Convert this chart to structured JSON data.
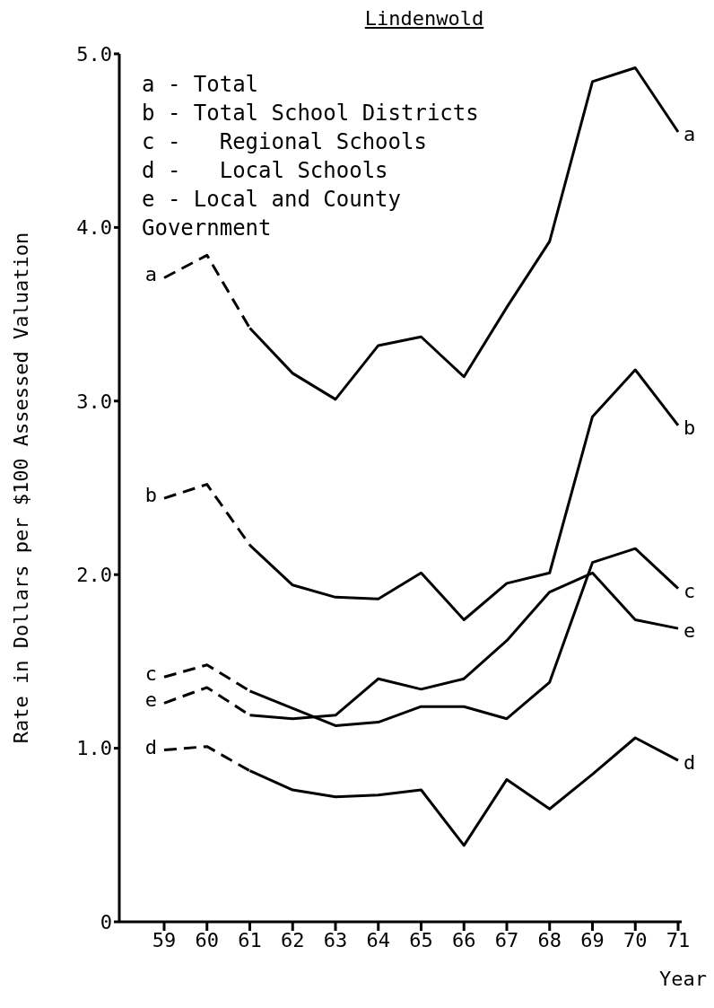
{
  "chart_data": {
    "type": "line",
    "title": "Lindenwold",
    "xlabel": "Year",
    "ylabel": "Rate in Dollars per $100  Assessed Valuation",
    "categories": [
      "59",
      "60",
      "61",
      "62",
      "63",
      "64",
      "65",
      "66",
      "67",
      "68",
      "69",
      "70",
      "71"
    ],
    "ylim": [
      0,
      5
    ],
    "yticks": [
      {
        "value": 0,
        "label": "0"
      },
      {
        "value": 1,
        "label": "1.0"
      },
      {
        "value": 2,
        "label": "2.0"
      },
      {
        "value": 3,
        "label": "3.0"
      },
      {
        "value": 4,
        "label": "4.0"
      },
      {
        "value": 5,
        "label": "5.0"
      }
    ],
    "marker": "none",
    "annotations": [
      "a - Total",
      "b - Total School Districts",
      "c -   Regional Schools",
      "d -   Local Schools",
      "e - Local and County Government"
    ],
    "series": [
      {
        "name": "a",
        "color": "#000000",
        "line_style": "dashed",
        "values": [
          3.71,
          3.84,
          3.42,
          null,
          null,
          null,
          null,
          null,
          null,
          null,
          null,
          null,
          null
        ]
      },
      {
        "name": "a",
        "color": "#000000",
        "line_style": "solid",
        "values": [
          null,
          null,
          3.42,
          3.16,
          3.01,
          3.32,
          3.37,
          3.14,
          3.54,
          3.92,
          4.84,
          4.92,
          4.55
        ]
      },
      {
        "name": "b",
        "color": "#000000",
        "line_style": "dashed",
        "values": [
          2.44,
          2.52,
          2.17,
          null,
          null,
          null,
          null,
          null,
          null,
          null,
          null,
          null,
          null
        ]
      },
      {
        "name": "b",
        "color": "#000000",
        "line_style": "solid",
        "values": [
          null,
          null,
          2.17,
          1.94,
          1.87,
          1.86,
          2.01,
          1.74,
          1.95,
          2.01,
          2.91,
          3.18,
          2.86
        ]
      },
      {
        "name": "c",
        "color": "#000000",
        "line_style": "dashed",
        "values": [
          1.41,
          1.48,
          1.33,
          null,
          null,
          null,
          null,
          null,
          null,
          null,
          null,
          null,
          null
        ]
      },
      {
        "name": "c",
        "color": "#000000",
        "line_style": "solid",
        "values": [
          null,
          null,
          1.33,
          1.23,
          1.13,
          1.15,
          1.24,
          1.24,
          1.17,
          1.38,
          2.07,
          2.15,
          1.92
        ]
      },
      {
        "name": "d",
        "color": "#000000",
        "line_style": "dashed",
        "values": [
          0.99,
          1.01,
          0.87,
          null,
          null,
          null,
          null,
          null,
          null,
          null,
          null,
          null,
          null
        ]
      },
      {
        "name": "d",
        "color": "#000000",
        "line_style": "solid",
        "values": [
          null,
          null,
          0.87,
          0.76,
          0.72,
          0.73,
          0.76,
          0.44,
          0.82,
          0.65,
          0.85,
          1.06,
          0.93
        ]
      },
      {
        "name": "e",
        "color": "#000000",
        "line_style": "dashed",
        "values": [
          1.26,
          1.35,
          1.19,
          null,
          null,
          null,
          null,
          null,
          null,
          null,
          null,
          null,
          null
        ]
      },
      {
        "name": "e",
        "color": "#000000",
        "line_style": "solid",
        "values": [
          null,
          null,
          1.19,
          1.17,
          1.19,
          1.4,
          1.34,
          1.4,
          1.62,
          1.9,
          2.01,
          1.74,
          1.69
        ]
      }
    ]
  }
}
